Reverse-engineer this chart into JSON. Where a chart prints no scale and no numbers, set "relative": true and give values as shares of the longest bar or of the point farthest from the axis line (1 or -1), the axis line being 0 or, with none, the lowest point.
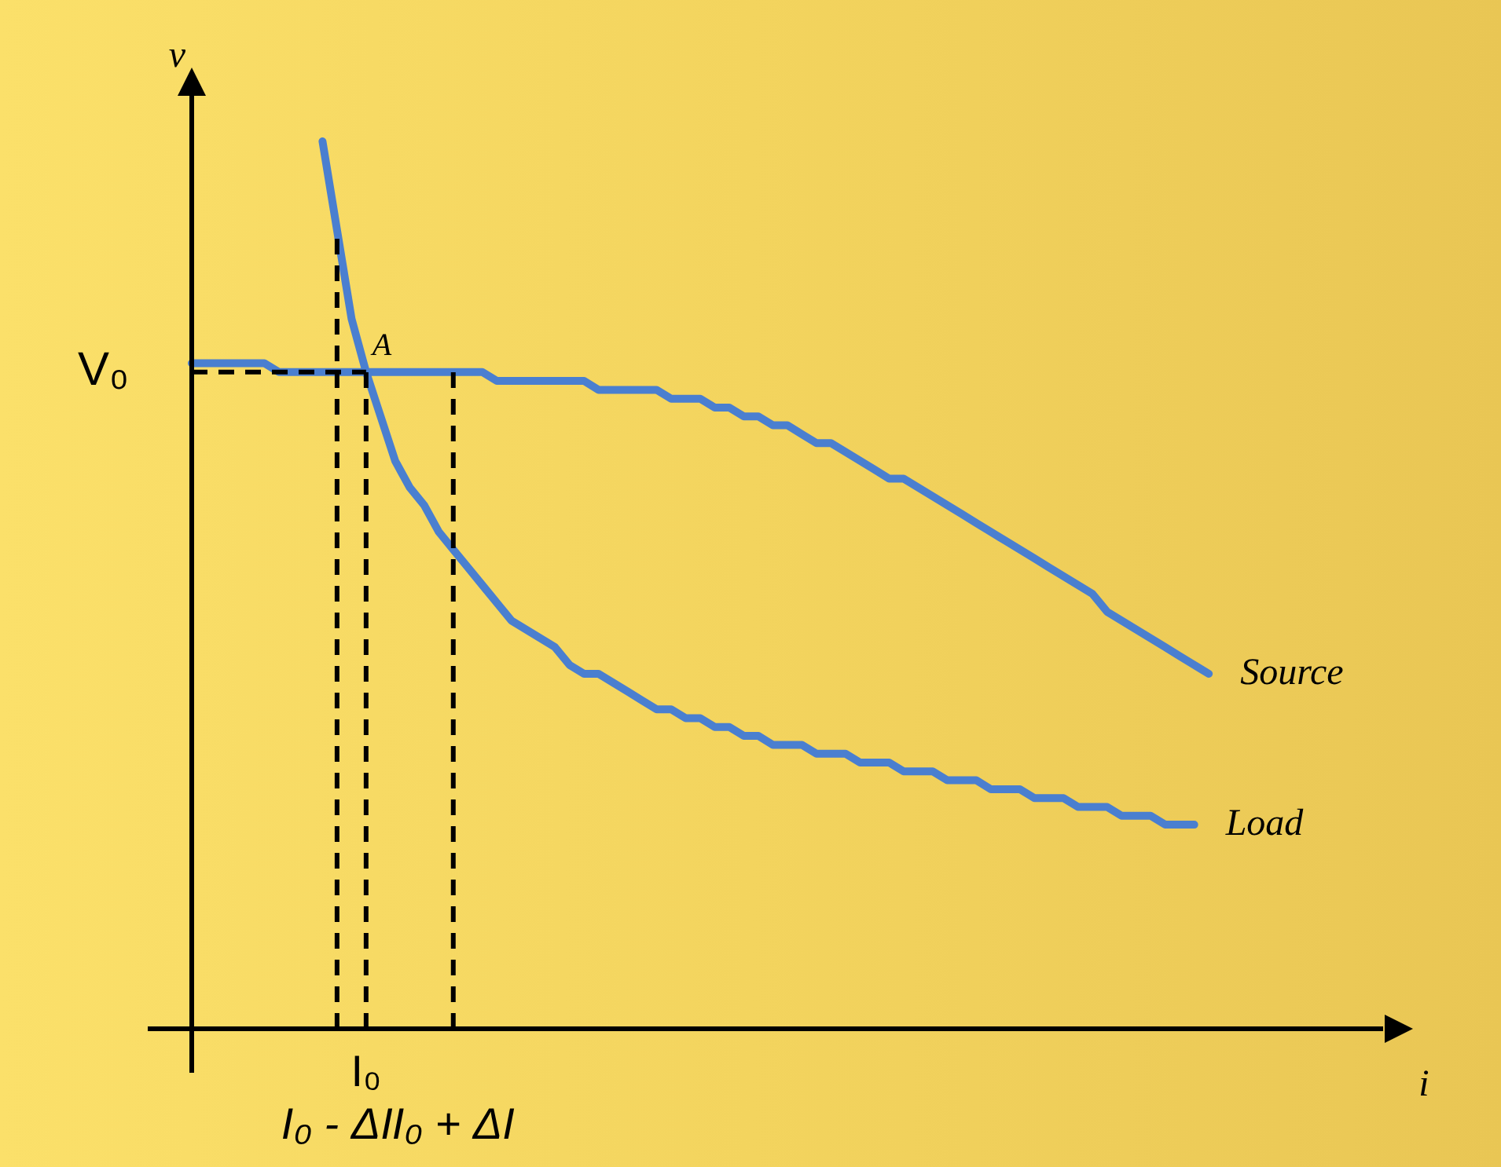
{
  "chart_data": {
    "type": "line",
    "relative": true,
    "xlabel": "i",
    "ylabel": "v",
    "tick_labels": "x",
    "legend": false,
    "categories": [
      null,
      null,
      null,
      null,
      null,
      null,
      null,
      null,
      null,
      null,
      "I₀ - ΔI",
      null,
      "I₀",
      null,
      null,
      null,
      null,
      null,
      "I₀ + ΔI",
      null,
      null,
      null,
      null,
      null,
      null,
      null,
      null,
      null,
      null,
      null,
      null,
      null,
      null,
      null,
      null,
      null,
      null,
      null,
      null,
      null,
      null,
      null,
      null,
      null,
      null,
      null,
      null,
      null,
      null,
      null,
      null,
      null,
      null,
      null,
      null,
      null,
      null,
      null,
      null,
      null,
      null,
      null,
      null,
      null,
      null,
      null,
      null,
      null,
      null,
      null,
      null,
      null,
      null,
      null,
      null,
      null,
      null,
      null,
      null,
      null,
      null,
      null,
      null
    ],
    "series": [
      {
        "name": "Source",
        "color": "#4a7fd0",
        "values": [
          0.75,
          0.75,
          0.75,
          0.75,
          0.75,
          0.75,
          0.74,
          0.74,
          0.74,
          0.74,
          0.74,
          0.74,
          0.74,
          0.74,
          0.74,
          0.74,
          0.74,
          0.74,
          0.74,
          0.74,
          0.74,
          0.73,
          0.73,
          0.73,
          0.73,
          0.73,
          0.73,
          0.73,
          0.72,
          0.72,
          0.72,
          0.72,
          0.72,
          0.71,
          0.71,
          0.71,
          0.7,
          0.7,
          0.69,
          0.69,
          0.68,
          0.68,
          0.67,
          0.66,
          0.66,
          0.65,
          0.64,
          0.63,
          0.62,
          0.62,
          0.61,
          0.6,
          0.59,
          0.58,
          0.57,
          0.56,
          0.55,
          0.54,
          0.53,
          0.52,
          0.51,
          0.5,
          0.49,
          0.47,
          0.46,
          0.45,
          0.44,
          0.43,
          0.42,
          0.41,
          0.4,
          null,
          null,
          null,
          null,
          null,
          null,
          null,
          null,
          null,
          null,
          null,
          null
        ]
      },
      {
        "name": "Load",
        "color": "#4a7fd0",
        "values": [
          null,
          null,
          null,
          null,
          null,
          null,
          null,
          null,
          null,
          1,
          0.9,
          0.8,
          0.74,
          0.69,
          0.64,
          0.61,
          0.59,
          0.56,
          0.54,
          0.52,
          0.5,
          0.48,
          0.46,
          0.45,
          0.44,
          0.43,
          0.41,
          0.4,
          0.4,
          0.39,
          0.38,
          0.37,
          0.36,
          0.36,
          0.35,
          0.35,
          0.34,
          0.34,
          0.33,
          0.33,
          0.32,
          0.32,
          0.32,
          0.31,
          0.31,
          0.31,
          0.3,
          0.3,
          0.3,
          0.29,
          0.29,
          0.29,
          0.28,
          0.28,
          0.28,
          0.27,
          0.27,
          0.27,
          0.26,
          0.26,
          0.26,
          0.25,
          0.25,
          0.25,
          0.24,
          0.24,
          0.24,
          0.23,
          0.23,
          0.23,
          null,
          null,
          null,
          null,
          null,
          null,
          null,
          null,
          null,
          null,
          null,
          null,
          null
        ]
      }
    ],
    "ref_lines": [
      {
        "axis": "y",
        "value": 0.74,
        "label": "V₀",
        "line_style": "dashed"
      },
      {
        "axis": "x",
        "value": "I₀ - ΔI",
        "line_style": "dashed"
      },
      {
        "axis": "x",
        "value": "I₀",
        "line_style": "dashed"
      },
      {
        "axis": "x",
        "value": "I₀ + ΔI",
        "line_style": "dashed"
      }
    ],
    "annotations": [
      {
        "text": "A",
        "x": "I₀",
        "y": 0.74
      }
    ]
  }
}
